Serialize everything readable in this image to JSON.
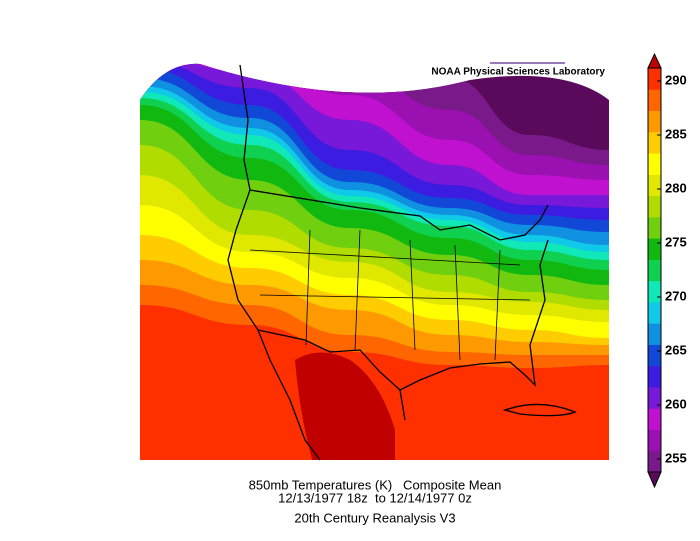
{
  "map": {
    "credit": "NOAA Physical Sciences Laboratory",
    "title_lines": [
      "850mb Temperatures (K)   Composite Mean",
      "12/13/1977 18z  to 12/14/1977 0z",
      "20th Century Reanalysis V3"
    ],
    "colorbar": {
      "ylim": [
        253.8,
        291.2
      ],
      "ticks": [
        255,
        260,
        265,
        270,
        275,
        280,
        285,
        290
      ],
      "colors": [
        "#5a0a5a",
        "#7a1a8a",
        "#9a10b0",
        "#c010d0",
        "#7818d8",
        "#3c1ce0",
        "#1248d8",
        "#1090e0",
        "#10c8e8",
        "#10e8b8",
        "#10d050",
        "#10b810",
        "#70d010",
        "#b0dc00",
        "#e0e800",
        "#ffff00",
        "#ffcc00",
        "#ff9900",
        "#ff6600",
        "#ff3000",
        "#c00000"
      ]
    }
  }
}
